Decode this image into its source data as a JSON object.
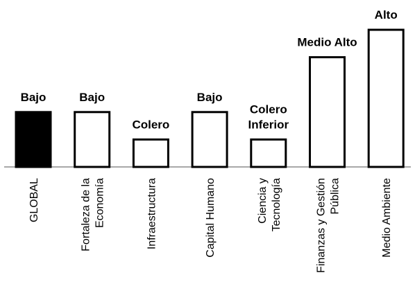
{
  "chart_data": {
    "type": "bar",
    "categories": [
      [
        "GLOBAL"
      ],
      [
        "Fortaleza de la",
        "Economía"
      ],
      [
        "Infraestructura"
      ],
      [
        "Capital Humano"
      ],
      [
        "Ciencia y",
        "Tecnología"
      ],
      [
        "Finanzas y Gestión",
        "Pública"
      ],
      [
        "Medio Ambiente"
      ]
    ],
    "values": [
      2,
      2,
      1,
      2,
      1,
      4,
      5
    ],
    "value_labels": [
      [
        "Bajo"
      ],
      [
        "Bajo"
      ],
      [
        "Colero"
      ],
      [
        "Bajo"
      ],
      [
        "Colero",
        "Inferior"
      ],
      [
        "Medio Alto"
      ],
      [
        "Alto"
      ]
    ],
    "bar_fills": [
      "#000000",
      "#ffffff",
      "#ffffff",
      "#ffffff",
      "#ffffff",
      "#ffffff",
      "#ffffff"
    ],
    "bar_stroke": "#000000",
    "ylim": [
      0,
      5
    ],
    "title": "",
    "xlabel": "",
    "ylabel": "",
    "grid": false,
    "legend": false
  }
}
